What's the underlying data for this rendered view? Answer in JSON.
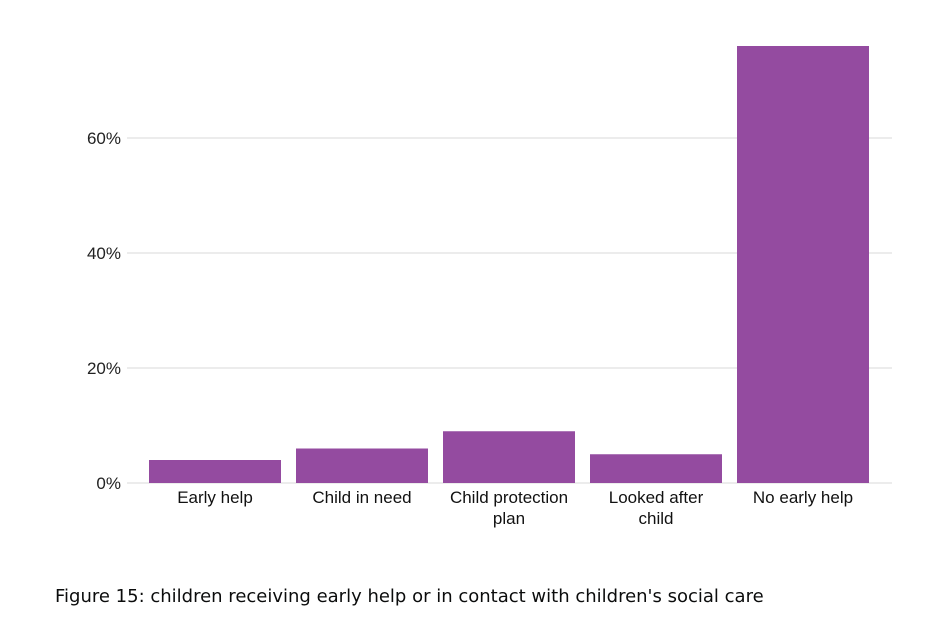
{
  "caption": "Figure 15: children receiving early help or in contact with children's social care",
  "chart_data": {
    "type": "bar",
    "title": "",
    "xlabel": "",
    "ylabel": "",
    "categories": [
      [
        "Early help"
      ],
      [
        "Child in need"
      ],
      [
        "Child protection",
        "plan"
      ],
      [
        "Looked after",
        "child"
      ],
      [
        "No early help"
      ]
    ],
    "values": [
      4,
      6,
      9,
      5,
      76
    ],
    "unit": "%",
    "ylim": [
      0,
      76
    ],
    "yticks": [
      0,
      20,
      40,
      60
    ],
    "ytick_labels": [
      "0%",
      "20%",
      "40%",
      "60%"
    ],
    "grid": "horizontal",
    "legend": "none",
    "bar_color": "#944ba0"
  }
}
